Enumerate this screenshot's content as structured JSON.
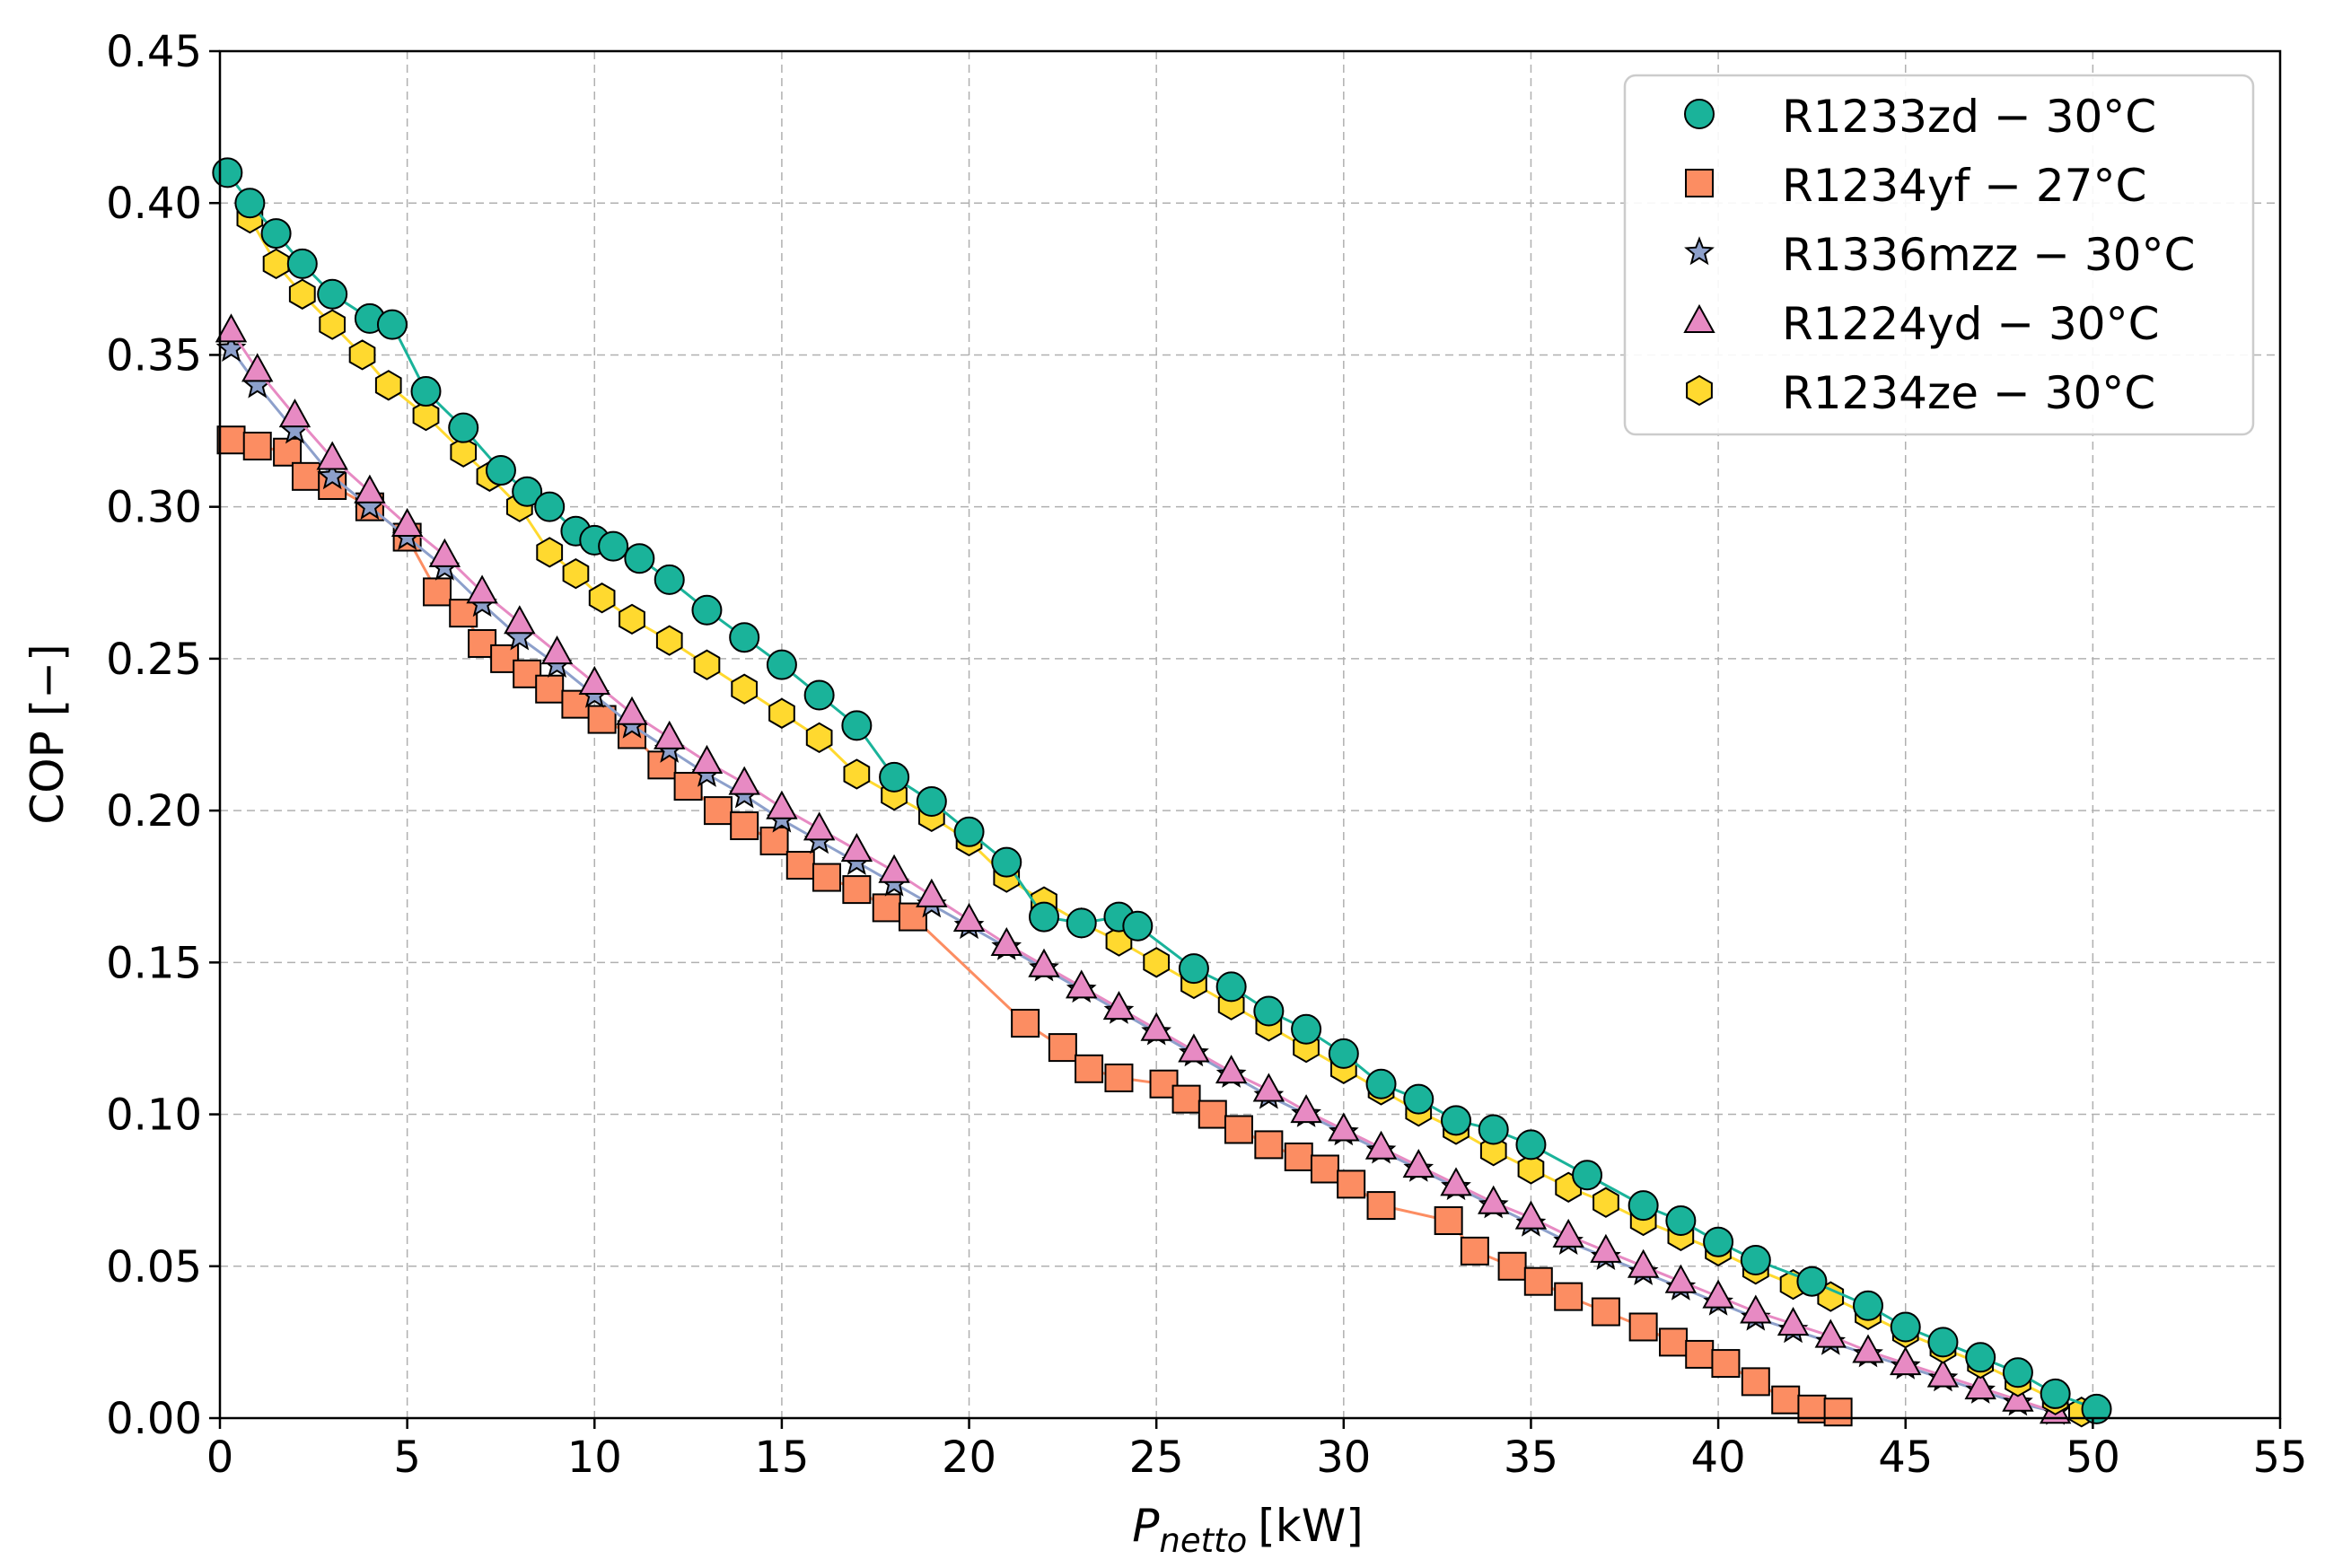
{
  "chart_data": {
    "type": "scatter",
    "title": "",
    "xlabel_main": "P",
    "xlabel_sub": "netto",
    "xlabel_unit": "[kW]",
    "ylabel": "COP [−]",
    "xlim": [
      0,
      55
    ],
    "ylim": [
      0,
      0.45
    ],
    "xticks": [
      0,
      5,
      10,
      15,
      20,
      25,
      30,
      35,
      40,
      45,
      50,
      55
    ],
    "xtick_labels": [
      "0",
      "5",
      "10",
      "15",
      "20",
      "25",
      "30",
      "35",
      "40",
      "45",
      "50",
      "55"
    ],
    "yticks": [
      0,
      0.05,
      0.1,
      0.15,
      0.2,
      0.25,
      0.3,
      0.35,
      0.4,
      0.45
    ],
    "ytick_labels": [
      "0.00",
      "0.05",
      "0.10",
      "0.15",
      "0.20",
      "0.25",
      "0.30",
      "0.35",
      "0.40",
      "0.45"
    ],
    "grid": true,
    "legend_position": "top-right",
    "series": [
      {
        "name": "R1233zd − 30°C",
        "marker": "circle",
        "color": "#1ab39a",
        "x": [
          0.2,
          0.8,
          1.5,
          2.2,
          3.0,
          4.0,
          4.6,
          5.5,
          6.5,
          7.5,
          8.2,
          8.8,
          9.5,
          10.0,
          10.5,
          11.2,
          12.0,
          13.0,
          14.0,
          15.0,
          16.0,
          17.0,
          18.0,
          19.0,
          20.0,
          21.0,
          22.0,
          23.0,
          24.0,
          24.5,
          26.0,
          27.0,
          28.0,
          29.0,
          30.0,
          31.0,
          32.0,
          33.0,
          34.0,
          35.0,
          36.5,
          38.0,
          39.0,
          40.0,
          41.0,
          42.5,
          44.0,
          45.0,
          46.0,
          47.0,
          48.0,
          49.0,
          50.1
        ],
        "y": [
          0.41,
          0.4,
          0.39,
          0.38,
          0.37,
          0.362,
          0.36,
          0.338,
          0.326,
          0.312,
          0.305,
          0.3,
          0.292,
          0.289,
          0.287,
          0.283,
          0.276,
          0.266,
          0.257,
          0.248,
          0.238,
          0.228,
          0.211,
          0.203,
          0.193,
          0.183,
          0.165,
          0.163,
          0.165,
          0.162,
          0.148,
          0.142,
          0.134,
          0.128,
          0.12,
          0.11,
          0.105,
          0.098,
          0.095,
          0.09,
          0.08,
          0.07,
          0.065,
          0.058,
          0.052,
          0.045,
          0.037,
          0.03,
          0.025,
          0.02,
          0.015,
          0.008,
          0.003
        ]
      },
      {
        "name": "R1234yf − 27°C",
        "marker": "square",
        "color": "#fc8d62",
        "x": [
          0.3,
          1.0,
          1.8,
          2.3,
          3.0,
          4.0,
          5.0,
          5.8,
          6.5,
          7.0,
          7.6,
          8.2,
          8.8,
          9.5,
          10.2,
          11.0,
          11.8,
          12.5,
          13.3,
          14.0,
          14.8,
          15.5,
          16.2,
          17.0,
          17.8,
          18.5,
          21.5,
          22.5,
          23.2,
          24.0,
          25.2,
          25.8,
          26.5,
          27.2,
          28.0,
          28.8,
          29.5,
          30.2,
          31.0,
          32.8,
          33.5,
          34.5,
          35.2,
          36.0,
          37.0,
          38.0,
          38.8,
          39.5,
          40.2,
          41.0,
          41.8,
          42.5,
          43.2
        ],
        "y": [
          0.322,
          0.32,
          0.318,
          0.31,
          0.307,
          0.3,
          0.29,
          0.272,
          0.265,
          0.255,
          0.25,
          0.245,
          0.24,
          0.235,
          0.23,
          0.225,
          0.215,
          0.208,
          0.2,
          0.195,
          0.19,
          0.182,
          0.178,
          0.174,
          0.168,
          0.165,
          0.13,
          0.122,
          0.115,
          0.112,
          0.11,
          0.105,
          0.1,
          0.095,
          0.09,
          0.086,
          0.082,
          0.077,
          0.07,
          0.065,
          0.055,
          0.05,
          0.045,
          0.04,
          0.035,
          0.03,
          0.025,
          0.021,
          0.018,
          0.012,
          0.006,
          0.003,
          0.002
        ]
      },
      {
        "name": "R1336mzz − 30°C",
        "marker": "star",
        "color": "#8da0cb",
        "x": [
          0.3,
          1.0,
          2.0,
          3.0,
          4.0,
          5.0,
          6.0,
          7.0,
          8.0,
          9.0,
          10.0,
          11.0,
          12.0,
          13.0,
          14.0,
          15.0,
          16.0,
          17.0,
          18.0,
          19.0,
          20.0,
          21.0,
          22.0,
          23.0,
          24.0,
          25.0,
          26.0,
          27.0,
          28.0,
          29.0,
          30.0,
          31.0,
          32.0,
          33.0,
          34.0,
          35.0,
          36.0,
          37.0,
          38.0,
          39.0,
          40.0,
          41.0,
          42.0,
          43.0,
          44.0,
          45.0,
          46.0,
          47.0,
          48.0,
          49.0
        ],
        "y": [
          0.352,
          0.34,
          0.325,
          0.31,
          0.3,
          0.29,
          0.28,
          0.268,
          0.257,
          0.248,
          0.238,
          0.228,
          0.22,
          0.212,
          0.205,
          0.197,
          0.19,
          0.183,
          0.176,
          0.169,
          0.162,
          0.155,
          0.148,
          0.141,
          0.134,
          0.127,
          0.12,
          0.113,
          0.106,
          0.1,
          0.094,
          0.088,
          0.082,
          0.076,
          0.07,
          0.064,
          0.058,
          0.053,
          0.048,
          0.043,
          0.038,
          0.033,
          0.029,
          0.025,
          0.021,
          0.017,
          0.013,
          0.009,
          0.005,
          0.002
        ]
      },
      {
        "name": "R1224yd − 30°C",
        "marker": "triangle",
        "color": "#e78ac3",
        "x": [
          0.3,
          1.0,
          2.0,
          3.0,
          4.0,
          5.0,
          6.0,
          7.0,
          8.0,
          9.0,
          10.0,
          11.0,
          12.0,
          13.0,
          14.0,
          15.0,
          16.0,
          17.0,
          18.0,
          19.0,
          20.0,
          21.0,
          22.0,
          23.0,
          24.0,
          25.0,
          26.0,
          27.0,
          28.0,
          29.0,
          30.0,
          31.0,
          32.0,
          33.0,
          34.0,
          35.0,
          36.0,
          37.0,
          38.0,
          39.0,
          40.0,
          41.0,
          42.0,
          43.0,
          44.0,
          45.0,
          46.0,
          47.0,
          48.0,
          49.0
        ],
        "y": [
          0.358,
          0.345,
          0.33,
          0.316,
          0.305,
          0.294,
          0.284,
          0.272,
          0.262,
          0.252,
          0.242,
          0.232,
          0.224,
          0.216,
          0.209,
          0.201,
          0.194,
          0.187,
          0.18,
          0.172,
          0.164,
          0.156,
          0.149,
          0.142,
          0.135,
          0.128,
          0.121,
          0.114,
          0.108,
          0.101,
          0.095,
          0.089,
          0.083,
          0.077,
          0.071,
          0.066,
          0.06,
          0.055,
          0.05,
          0.045,
          0.04,
          0.035,
          0.031,
          0.027,
          0.022,
          0.018,
          0.014,
          0.01,
          0.006,
          0.002
        ]
      },
      {
        "name": "R1234ze − 30°C",
        "marker": "hexagon",
        "color": "#ffd92f",
        "x": [
          0.8,
          1.5,
          2.2,
          3.0,
          3.8,
          4.5,
          5.5,
          6.5,
          7.2,
          8.0,
          8.8,
          9.5,
          10.2,
          11.0,
          12.0,
          13.0,
          14.0,
          15.0,
          16.0,
          17.0,
          18.0,
          19.0,
          20.0,
          21.0,
          22.0,
          23.0,
          24.0,
          25.0,
          26.0,
          27.0,
          28.0,
          29.0,
          30.0,
          31.0,
          32.0,
          33.0,
          34.0,
          35.0,
          36.0,
          37.0,
          38.0,
          39.0,
          40.0,
          41.0,
          42.0,
          43.0,
          44.0,
          45.0,
          46.0,
          47.0,
          48.0,
          49.0,
          49.7
        ],
        "y": [
          0.395,
          0.38,
          0.37,
          0.36,
          0.35,
          0.34,
          0.33,
          0.318,
          0.31,
          0.3,
          0.285,
          0.278,
          0.27,
          0.263,
          0.256,
          0.248,
          0.24,
          0.232,
          0.224,
          0.212,
          0.205,
          0.198,
          0.19,
          0.178,
          0.17,
          0.163,
          0.157,
          0.15,
          0.143,
          0.136,
          0.129,
          0.122,
          0.115,
          0.108,
          0.101,
          0.095,
          0.088,
          0.082,
          0.076,
          0.071,
          0.065,
          0.06,
          0.055,
          0.049,
          0.044,
          0.04,
          0.034,
          0.028,
          0.023,
          0.018,
          0.012,
          0.006,
          0.002
        ]
      }
    ]
  }
}
